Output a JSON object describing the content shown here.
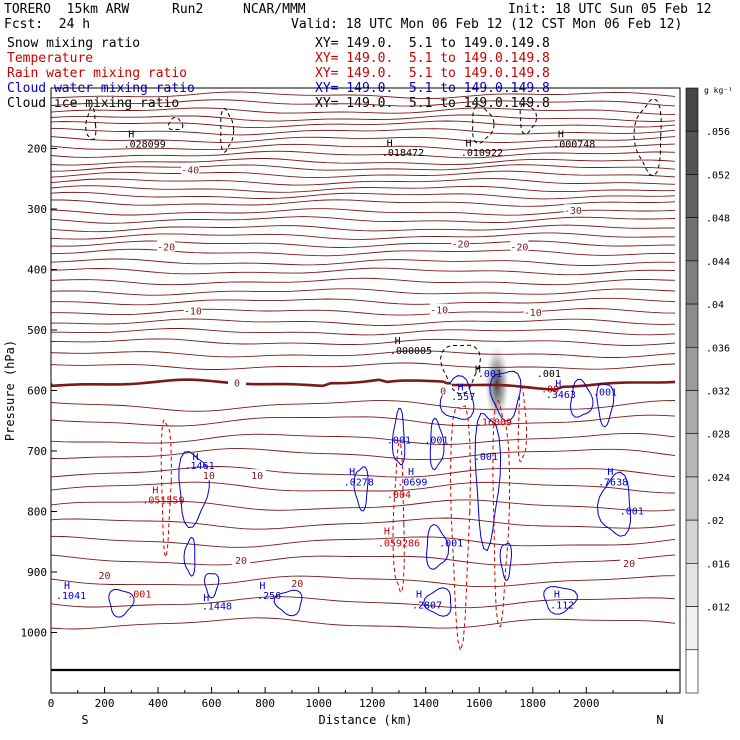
{
  "header": {
    "model": "TORERO  15km ARW",
    "run": "Run2",
    "center": "NCAR/MMM",
    "init": "Init: 18 UTC Sun 05 Feb 12",
    "fcst": "Fcst:  24 h",
    "valid": "Valid: 18 UTC Mon 06 Feb 12 (12 CST Mon 06 Feb 12)"
  },
  "legend": [
    {
      "label": "Snow mixing ratio",
      "xy": "XY= 149.0.  5.1 to 149.0.149.8",
      "color": "#000000"
    },
    {
      "label": "Temperature",
      "xy": "XY= 149.0.  5.1 to 149.0.149.8",
      "color": "#cc0000"
    },
    {
      "label": "Rain water mixing ratio",
      "xy": "XY= 149.0.  5.1 to 149.0.149.8",
      "color": "#cc0000"
    },
    {
      "label": "Cloud water mixing ratio",
      "xy": "XY= 149.0.  5.1 to 149.0.149.8",
      "color": "#0000cc"
    },
    {
      "label": "Cloud ice mixing ratio",
      "xy": "XY= 149.0.  5.1 to 149.0.149.8",
      "color": "#000000"
    }
  ],
  "chart_data": {
    "type": "cross-section contour",
    "xlabel": "Distance (km)",
    "ylabel": "Pressure (hPa)",
    "xlim": [
      0,
      2350
    ],
    "ylim": [
      1100,
      100
    ],
    "x_ticks": [
      0,
      200,
      400,
      600,
      800,
      1000,
      1200,
      1400,
      1600,
      1800,
      2000
    ],
    "y_ticks": [
      200,
      300,
      400,
      500,
      600,
      700,
      800,
      900,
      1000
    ],
    "end_labels": {
      "left": "S",
      "right": "N"
    },
    "colorbar": {
      "unit": "g kg⁻¹",
      "ticks": [
        ".056",
        ".052",
        ".048",
        ".044",
        ".04",
        ".036",
        ".032",
        ".028",
        ".024",
        ".02",
        ".016",
        ".012"
      ]
    },
    "isotherms": [
      {
        "label": "-40",
        "x": 520,
        "p": 235
      },
      {
        "label": "-30",
        "x": 1950,
        "p": 302
      },
      {
        "label": "-20",
        "x": 430,
        "p": 362
      },
      {
        "label": "-20",
        "x": 1530,
        "p": 357
      },
      {
        "label": "-20",
        "x": 1750,
        "p": 362
      },
      {
        "label": "-10",
        "x": 530,
        "p": 468
      },
      {
        "label": "-10",
        "x": 1450,
        "p": 466
      },
      {
        "label": "-10",
        "x": 1800,
        "p": 470
      },
      {
        "label": "0",
        "x": 695,
        "p": 587
      },
      {
        "label": "0",
        "x": 1465,
        "p": 600
      },
      {
        "label": "10",
        "x": 590,
        "p": 740
      },
      {
        "label": "10",
        "x": 770,
        "p": 740
      },
      {
        "label": "20",
        "x": 710,
        "p": 880
      },
      {
        "label": "20",
        "x": 2160,
        "p": 885
      },
      {
        "label": "20",
        "x": 200,
        "p": 905
      },
      {
        "label": "20",
        "x": 920,
        "p": 918
      }
    ],
    "annotations": [
      {
        "text": "H",
        "x": 300,
        "p": 182,
        "color": "#000000"
      },
      {
        "text": ".028099",
        "x": 350,
        "p": 198,
        "color": "#000000"
      },
      {
        "text": "H",
        "x": 1265,
        "p": 197,
        "color": "#000000"
      },
      {
        "text": ".018472",
        "x": 1315,
        "p": 212,
        "color": "#000000"
      },
      {
        "text": "H",
        "x": 1560,
        "p": 197,
        "color": "#000000"
      },
      {
        "text": ".010922",
        "x": 1610,
        "p": 212,
        "color": "#000000"
      },
      {
        "text": "H",
        "x": 1905,
        "p": 182,
        "color": "#000000"
      },
      {
        "text": ".000748",
        "x": 1955,
        "p": 198,
        "color": "#000000"
      },
      {
        "text": "H",
        "x": 1295,
        "p": 523,
        "color": "#000000"
      },
      {
        "text": ".000005",
        "x": 1345,
        "p": 540,
        "color": "#000000"
      },
      {
        "text": "H",
        "x": 1595,
        "p": 570,
        "color": "#000000"
      },
      {
        "text": ".001",
        "x": 1640,
        "p": 578,
        "color": "#0000cc"
      },
      {
        "text": ".001",
        "x": 1860,
        "p": 578,
        "color": "#000000"
      },
      {
        "text": "H",
        "x": 1895,
        "p": 594,
        "color": "#0000cc"
      },
      {
        "text": ".3463",
        "x": 1905,
        "p": 612,
        "color": "#0000cc"
      },
      {
        "text": ".001",
        "x": 2070,
        "p": 608,
        "color": "#0000cc"
      },
      {
        "text": ".00",
        "x": 1865,
        "p": 603,
        "color": "#cc0000"
      },
      {
        "text": "H",
        "x": 1530,
        "p": 600,
        "color": "#0000cc"
      },
      {
        "text": ".557",
        "x": 1540,
        "p": 616,
        "color": "#0000cc"
      },
      {
        "text": ".16009",
        "x": 1655,
        "p": 658,
        "color": "#cc0000"
      },
      {
        "text": ".001",
        "x": 1300,
        "p": 688,
        "color": "#0000cc"
      },
      {
        "text": ".001",
        "x": 1440,
        "p": 688,
        "color": "#0000cc"
      },
      {
        "text": ".001",
        "x": 1625,
        "p": 715,
        "color": "#0000cc"
      },
      {
        "text": "H",
        "x": 540,
        "p": 715,
        "color": "#0000cc"
      },
      {
        "text": ".1461",
        "x": 555,
        "p": 730,
        "color": "#0000cc"
      },
      {
        "text": "H",
        "x": 1345,
        "p": 740,
        "color": "#0000cc"
      },
      {
        "text": ".0699",
        "x": 1350,
        "p": 757,
        "color": "#0000cc"
      },
      {
        "text": ".004",
        "x": 1300,
        "p": 778,
        "color": "#cc0000"
      },
      {
        "text": "H",
        "x": 1125,
        "p": 740,
        "color": "#0000cc"
      },
      {
        "text": ".0278",
        "x": 1150,
        "p": 757,
        "color": "#0000cc"
      },
      {
        "text": "H",
        "x": 2090,
        "p": 740,
        "color": "#0000cc"
      },
      {
        "text": ".7638",
        "x": 2100,
        "p": 757,
        "color": "#0000cc"
      },
      {
        "text": ".001",
        "x": 2170,
        "p": 805,
        "color": "#0000cc"
      },
      {
        "text": "H",
        "x": 390,
        "p": 770,
        "color": "#cc0000"
      },
      {
        "text": ".051559",
        "x": 420,
        "p": 787,
        "color": "#cc0000"
      },
      {
        "text": "H",
        "x": 1255,
        "p": 838,
        "color": "#cc0000"
      },
      {
        "text": ".059286",
        "x": 1300,
        "p": 858,
        "color": "#cc0000"
      },
      {
        "text": ".001",
        "x": 1495,
        "p": 858,
        "color": "#0000cc"
      },
      {
        "text": "H",
        "x": 60,
        "p": 928,
        "color": "#0000cc"
      },
      {
        "text": ".1041",
        "x": 75,
        "p": 945,
        "color": "#0000cc"
      },
      {
        "text": ".001",
        "x": 330,
        "p": 942,
        "color": "#cc0000"
      },
      {
        "text": "H",
        "x": 580,
        "p": 948,
        "color": "#0000cc"
      },
      {
        "text": ".1448",
        "x": 620,
        "p": 962,
        "color": "#0000cc"
      },
      {
        "text": "H",
        "x": 790,
        "p": 928,
        "color": "#0000cc"
      },
      {
        "text": ".256",
        "x": 815,
        "p": 945,
        "color": "#0000cc"
      },
      {
        "text": "H",
        "x": 1375,
        "p": 942,
        "color": "#0000cc"
      },
      {
        "text": ".2807",
        "x": 1405,
        "p": 960,
        "color": "#0000cc"
      },
      {
        "text": "H",
        "x": 1890,
        "p": 942,
        "color": "#0000cc"
      },
      {
        "text": ".112",
        "x": 1910,
        "p": 960,
        "color": "#0000cc"
      }
    ]
  }
}
